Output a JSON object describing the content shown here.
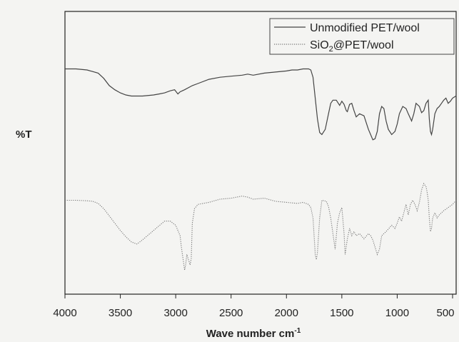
{
  "chart_data": {
    "type": "line",
    "title": "",
    "xlabel": "Wave number cm",
    "xlabel_superscript": "-1",
    "ylabel": "%T",
    "xlim": [
      4000,
      450
    ],
    "x_reversed": true,
    "ylim": [
      0,
      100
    ],
    "y_ticks_shown": false,
    "grid": false,
    "legend_position": "top-right",
    "x_ticks": [
      4000,
      3500,
      3000,
      2500,
      2000,
      1500,
      1000,
      500
    ],
    "x_tick_labels": [
      "4000",
      "3500",
      "3000",
      "2500",
      "2000",
      "1500",
      "1000",
      "500"
    ],
    "series": [
      {
        "name": "Unmodified PET/wool",
        "legend_parts": [
          {
            "text": "Unmodified PET/wool"
          }
        ],
        "color": "#444444",
        "dash": "solid",
        "x": [
          4000,
          3900,
          3800,
          3700,
          3650,
          3600,
          3550,
          3500,
          3450,
          3400,
          3300,
          3200,
          3150,
          3100,
          3050,
          3010,
          2980,
          2960,
          2920,
          2850,
          2800,
          2700,
          2600,
          2500,
          2400,
          2350,
          2300,
          2200,
          2100,
          2000,
          1950,
          1900,
          1850,
          1800,
          1780,
          1760,
          1740,
          1720,
          1700,
          1680,
          1650,
          1620,
          1600,
          1580,
          1550,
          1520,
          1500,
          1480,
          1460,
          1450,
          1430,
          1410,
          1390,
          1370,
          1340,
          1300,
          1260,
          1240,
          1220,
          1200,
          1180,
          1160,
          1140,
          1120,
          1100,
          1080,
          1050,
          1020,
          1000,
          980,
          950,
          920,
          900,
          870,
          850,
          830,
          800,
          780,
          760,
          740,
          720,
          710,
          700,
          690,
          680,
          660,
          640,
          620,
          600,
          580,
          560,
          540,
          520,
          500,
          470,
          450
        ],
        "y": [
          88,
          88,
          87,
          84,
          79,
          72,
          68,
          65,
          63,
          62,
          62,
          63,
          64,
          65,
          67,
          68,
          64,
          66,
          68,
          72,
          74,
          78,
          80,
          81,
          82,
          83,
          82,
          84,
          85,
          86,
          87,
          87,
          88,
          88,
          87,
          80,
          60,
          40,
          27,
          25,
          30,
          45,
          55,
          58,
          58,
          53,
          57,
          54,
          48,
          47,
          54,
          55,
          48,
          42,
          45,
          43,
          30,
          25,
          20,
          21,
          28,
          45,
          52,
          50,
          38,
          30,
          25,
          28,
          35,
          45,
          52,
          50,
          45,
          38,
          45,
          55,
          52,
          46,
          48,
          55,
          58,
          40,
          28,
          25,
          30,
          45,
          50,
          52,
          55,
          58,
          60,
          55,
          57,
          60,
          62,
          63
        ]
      },
      {
        "name": "SiO2@PET/wool",
        "legend_parts": [
          {
            "text": "SiO"
          },
          {
            "text": "2",
            "sub": true
          },
          {
            "text": "@PET/wool"
          }
        ],
        "color": "#777777",
        "dash": "1.2 1.6",
        "x": [
          4000,
          3900,
          3800,
          3750,
          3700,
          3650,
          3600,
          3550,
          3500,
          3450,
          3400,
          3350,
          3300,
          3200,
          3100,
          3050,
          3000,
          2960,
          2950,
          2930,
          2920,
          2910,
          2900,
          2870,
          2860,
          2850,
          2830,
          2800,
          2700,
          2600,
          2500,
          2400,
          2350,
          2300,
          2200,
          2100,
          2000,
          1900,
          1850,
          1800,
          1780,
          1760,
          1740,
          1730,
          1720,
          1700,
          1680,
          1640,
          1620,
          1600,
          1580,
          1560,
          1540,
          1520,
          1500,
          1480,
          1470,
          1450,
          1430,
          1410,
          1390,
          1370,
          1340,
          1300,
          1260,
          1240,
          1220,
          1200,
          1180,
          1160,
          1140,
          1100,
          1050,
          1020,
          1000,
          980,
          960,
          940,
          920,
          900,
          880,
          860,
          840,
          820,
          800,
          780,
          760,
          740,
          730,
          720,
          710,
          700,
          690,
          680,
          660,
          640,
          620,
          580,
          540,
          500,
          460,
          450
        ],
        "y": [
          -38,
          -38,
          -38.5,
          -39,
          -41,
          -46,
          -53,
          -60,
          -67,
          -73,
          -78,
          -80,
          -76,
          -67,
          -58,
          -58,
          -62,
          -72,
          -82,
          -97,
          -105,
          -100,
          -90,
          -100,
          -94,
          -60,
          -46,
          -42,
          -40,
          -37,
          -36,
          -34,
          -35,
          -37,
          -36,
          -39,
          -40,
          -41,
          -40,
          -42,
          -45,
          -55,
          -90,
          -95,
          -88,
          -55,
          -38,
          -39,
          -44,
          -55,
          -70,
          -85,
          -60,
          -50,
          -45,
          -70,
          -90,
          -75,
          -65,
          -72,
          -68,
          -72,
          -70,
          -75,
          -70,
          -72,
          -76,
          -83,
          -90,
          -85,
          -72,
          -68,
          -62,
          -65,
          -60,
          -54,
          -58,
          -50,
          -42,
          -52,
          -42,
          -38,
          -42,
          -48,
          -40,
          -28,
          -22,
          -25,
          -30,
          -38,
          -55,
          -68,
          -65,
          -55,
          -50,
          -55,
          -52,
          -48,
          -45,
          -42,
          -38,
          -38
        ]
      }
    ]
  }
}
